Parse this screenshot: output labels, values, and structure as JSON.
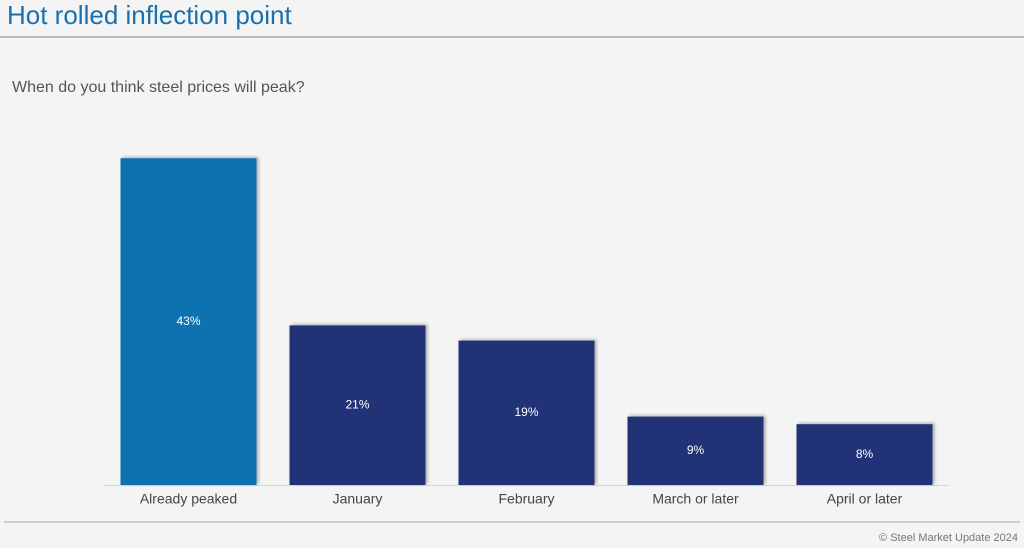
{
  "chart_data": {
    "type": "bar",
    "title": "Hot rolled inflection point",
    "subtitle": "When do you think steel prices will peak?",
    "categories": [
      "Already peaked",
      "January",
      "February",
      "March or later",
      "April or later"
    ],
    "values": [
      43,
      21,
      19,
      9,
      8
    ],
    "value_labels": [
      "43%",
      "21%",
      "19%",
      "9%",
      "8%"
    ],
    "colors": [
      "#0e72b0",
      "#213376",
      "#213376",
      "#213376",
      "#213376"
    ],
    "footer": "© Steel Market Update 2024"
  }
}
